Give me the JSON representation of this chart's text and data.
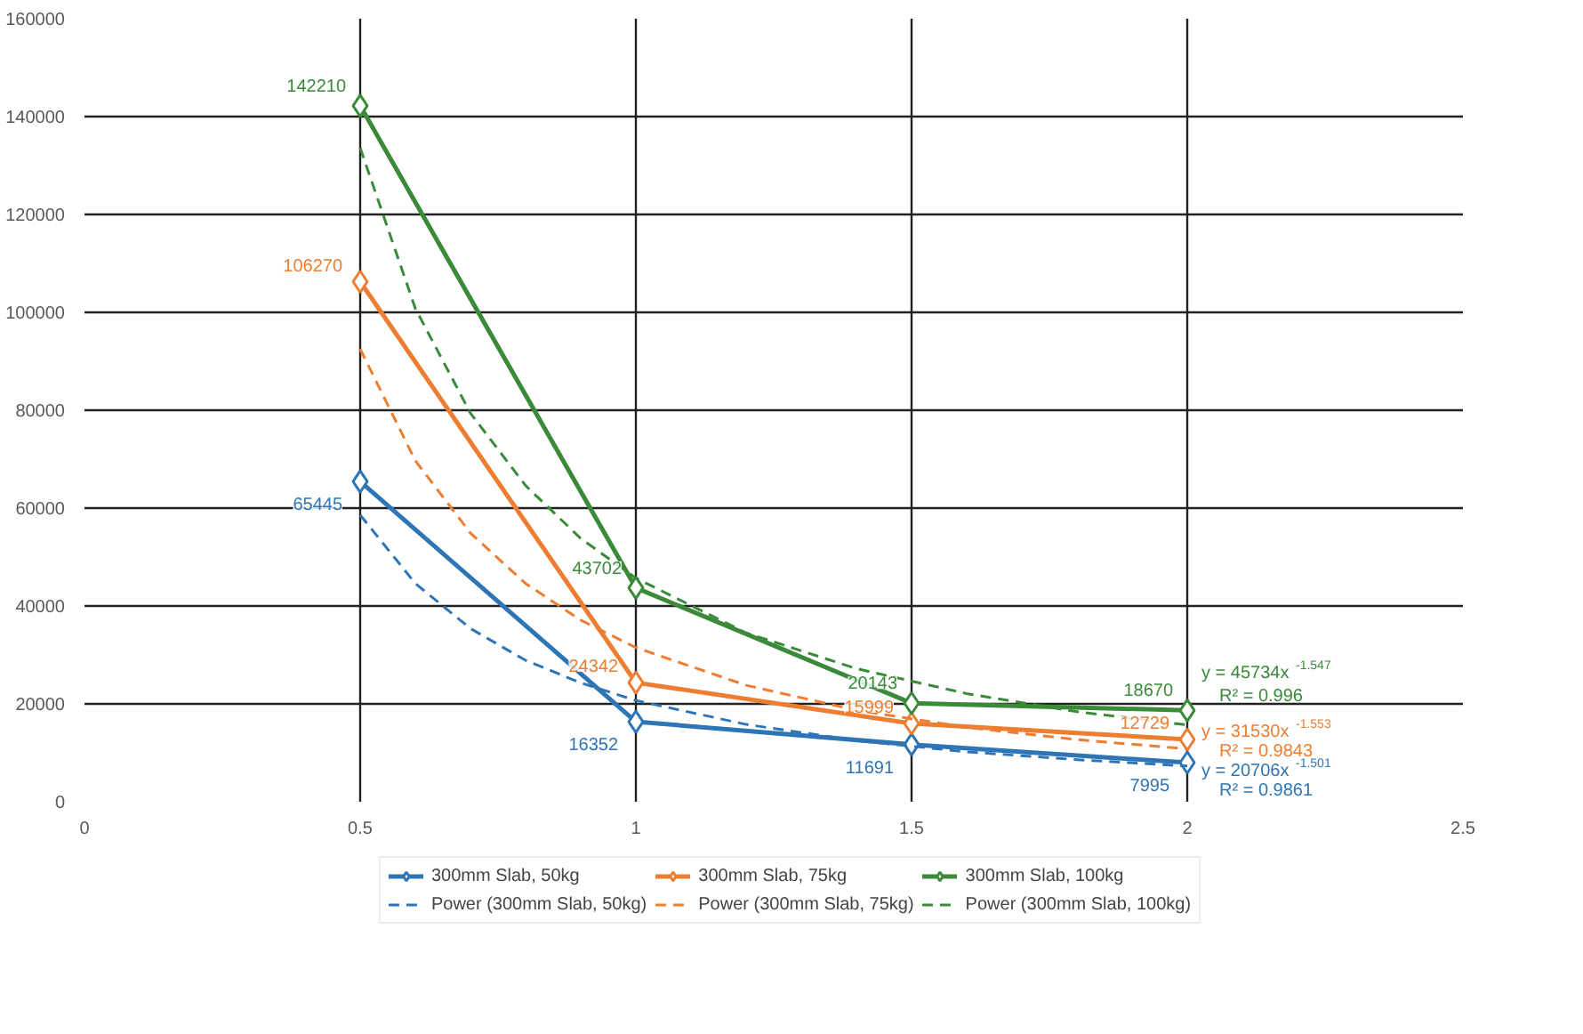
{
  "chart_data": {
    "type": "line",
    "xlim": [
      0,
      2.5
    ],
    "xticks": [
      0,
      0.5,
      1,
      1.5,
      2,
      2.5
    ],
    "ylim": [
      0,
      160000
    ],
    "yticks": [
      0,
      20000,
      40000,
      60000,
      80000,
      100000,
      120000,
      140000,
      160000
    ],
    "grid": true,
    "legend": "bottom",
    "marker": "diamond",
    "x": [
      0.5,
      1,
      1.5,
      2
    ],
    "series": [
      {
        "name": "300mm Slab, 50kg",
        "color": "#2e75b6",
        "values": [
          65445,
          16352,
          11691,
          7995
        ],
        "value_labels": [
          "65445",
          "16352",
          "11691",
          "7995"
        ]
      },
      {
        "name": "300mm Slab, 75kg",
        "color": "#ed7d31",
        "values": [
          106270,
          24342,
          15999,
          12729
        ],
        "value_labels": [
          "106270",
          "24342",
          "15999",
          "12729"
        ]
      },
      {
        "name": "300mm Slab, 100kg",
        "color": "#3a8a3a",
        "values": [
          142210,
          43702,
          20143,
          18670
        ],
        "value_labels": [
          "142210",
          "43702",
          "20143",
          "18670"
        ]
      },
      {
        "name": "Power (300mm Slab, 50kg)",
        "type": "line",
        "line_style": "dashed",
        "marker": "none",
        "color": "#2e75b6",
        "x": [
          0.5,
          0.6,
          0.7,
          0.8,
          0.9,
          1,
          1.2,
          1.4,
          1.6,
          1.8,
          2
        ],
        "values": [
          58600,
          44600,
          35400,
          28900,
          24300,
          20700,
          15800,
          12500,
          10200,
          8600,
          7300
        ]
      },
      {
        "name": "Power (300mm Slab, 75kg)",
        "type": "line",
        "line_style": "dashed",
        "marker": "none",
        "color": "#ed7d31",
        "x": [
          0.5,
          0.6,
          0.7,
          0.8,
          0.9,
          1,
          1.2,
          1.4,
          1.6,
          1.8,
          2
        ],
        "values": [
          92500,
          69700,
          54900,
          44600,
          37100,
          31500,
          23800,
          18700,
          15200,
          12700,
          10800
        ]
      },
      {
        "name": "Power (300mm Slab, 100kg)",
        "type": "line",
        "line_style": "dashed",
        "marker": "none",
        "color": "#3a8a3a",
        "x": [
          0.5,
          0.6,
          0.7,
          0.8,
          0.9,
          1,
          1.2,
          1.4,
          1.6,
          1.8,
          2
        ],
        "values": [
          133600,
          100800,
          79400,
          64600,
          53800,
          45700,
          34500,
          27200,
          22100,
          18400,
          15700
        ]
      }
    ],
    "annotations": [
      "y = 20706x$^{-1.501}$",
      "R² = 0.9861",
      "y = 31530x$^{-1.553}$",
      "R² = 0.9843",
      "y = 45734x$^{-1.547}$",
      "R² = 0.996"
    ]
  }
}
